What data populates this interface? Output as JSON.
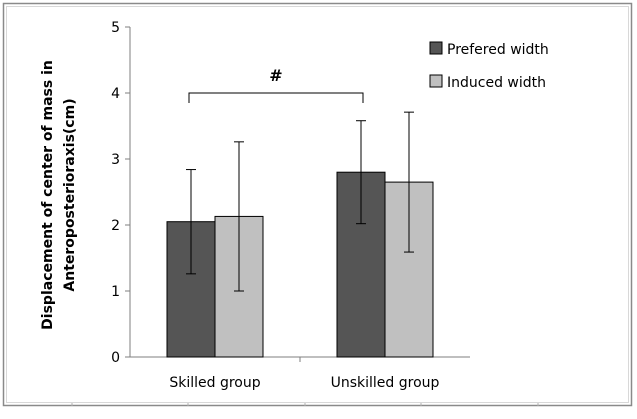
{
  "chart_data": {
    "type": "bar",
    "title": "",
    "xlabel": "",
    "ylabel_lines": [
      "Displacement of center of mass in",
      "Anteroposterioraxis(cm)"
    ],
    "categories": [
      "Skilled group",
      "Unskilled group"
    ],
    "ylim": [
      0,
      5
    ],
    "yticks": [
      "0",
      "1",
      "2",
      "3",
      "4",
      "5"
    ],
    "grid": false,
    "legend_position": "top-right",
    "series": [
      {
        "name": "Prefered width",
        "color": "#555555",
        "values": [
          2.05,
          2.8
        ],
        "error": [
          0.79,
          0.78
        ]
      },
      {
        "name": "Induced width",
        "color": "#c0c0c0",
        "values": [
          2.13,
          2.65
        ],
        "error": [
          1.13,
          1.06
        ]
      }
    ],
    "annotations": [
      {
        "text": "#",
        "type": "significance-bracket",
        "from_category": 0,
        "to_category": 1,
        "y": 4.0
      }
    ]
  }
}
